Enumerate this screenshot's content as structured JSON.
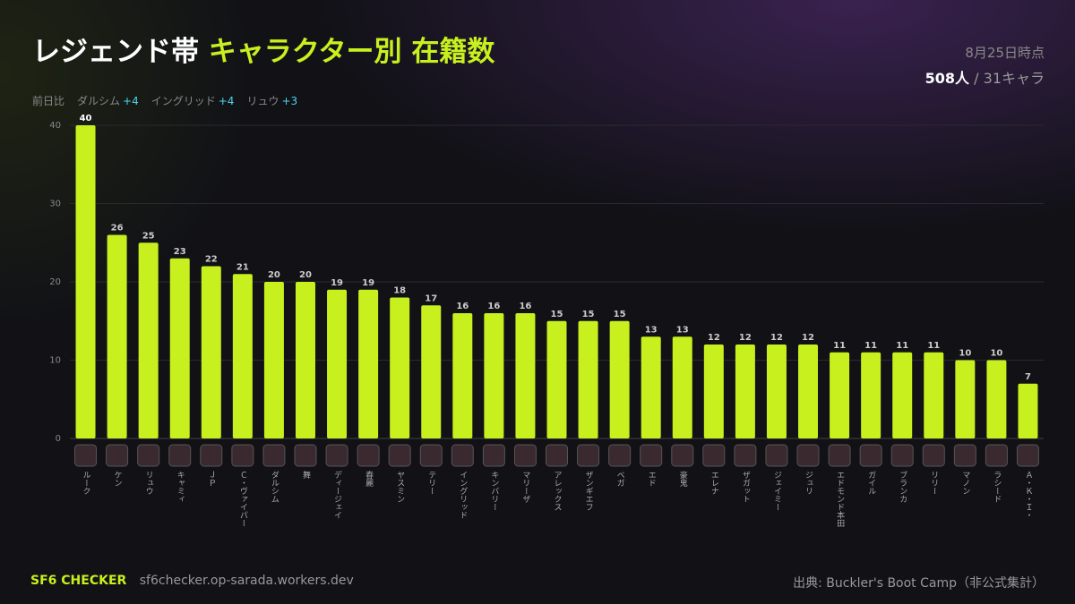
{
  "header": {
    "title_white": "レジェンド帯",
    "title_accent": "キャラクター別 在籍数",
    "date": "8月25日時点",
    "total": "508人",
    "count": "/ 31キャラ",
    "diff_label": "前日比",
    "diffs": [
      {
        "name": "ダルシム",
        "delta": "+4"
      },
      {
        "name": "イングリッド",
        "delta": "+4"
      },
      {
        "name": "リュウ",
        "delta": "+3"
      }
    ]
  },
  "chart_data": {
    "type": "bar",
    "color": "#c8f01e",
    "categories": [
      "ルーク",
      "ケン",
      "リュウ",
      "キャミィ",
      "ＪＰ",
      "Ｃ・ヴァイパー",
      "ダルシム",
      "舞",
      "ディージェイ",
      "春麗",
      "ヤスミン",
      "テリー",
      "イングリッド",
      "キンバリー",
      "マリーザ",
      "アレックス",
      "ザンギエフ",
      "ベガ",
      "エド",
      "豪鬼",
      "エレナ",
      "ザガット",
      "ジェイミー",
      "ジュリ",
      "エドモンド本田",
      "ガイル",
      "ブランカ",
      "リリー",
      "マノン",
      "ラシード",
      "Ａ・Ｋ・Ｉ・"
    ],
    "values": [
      40,
      26,
      25,
      23,
      22,
      21,
      20,
      20,
      19,
      19,
      18,
      17,
      16,
      16,
      16,
      15,
      15,
      15,
      13,
      13,
      12,
      12,
      12,
      12,
      11,
      11,
      11,
      11,
      10,
      10,
      7
    ],
    "ylim": [
      0,
      40
    ],
    "yticks": [
      0,
      10,
      20,
      30,
      40
    ],
    "grid": true
  },
  "footer": {
    "brand": "SF6 CHECKER",
    "url": "sf6checker.op-sarada.workers.dev",
    "source": "出典: Buckler's Boot Camp（非公式集計）"
  }
}
